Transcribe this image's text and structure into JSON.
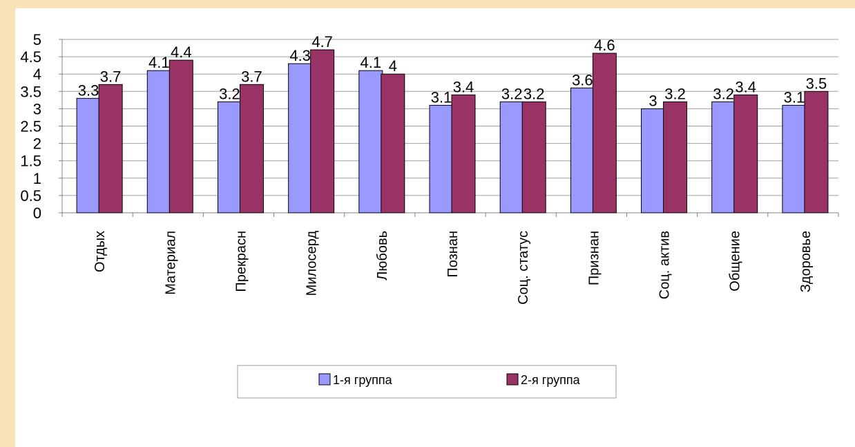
{
  "chart_data": {
    "type": "bar",
    "title": "",
    "xlabel": "",
    "ylabel": "",
    "ylim": [
      0,
      5
    ],
    "yticks": [
      "0",
      "0.5",
      "1",
      "1.5",
      "2",
      "2.5",
      "3",
      "3.5",
      "4",
      "4.5",
      "5"
    ],
    "grid": true,
    "legend_position": "bottom",
    "categories": [
      "Отдых",
      "Материал",
      "Прекрасн",
      "Милосерд",
      "Любовь",
      "Познан",
      "Соц. статус",
      "Признан",
      "Соц. актив",
      "Общение",
      "Здоровье"
    ],
    "series": [
      {
        "name": "1-я группа",
        "color": "#9999ff",
        "values": [
          3.3,
          4.1,
          3.2,
          4.3,
          4.1,
          3.1,
          3.2,
          3.6,
          3,
          3.2,
          3.1
        ],
        "labels": [
          "3.3",
          "4.1",
          "3.2",
          "4.3",
          "4.1",
          "3.1",
          "3.2",
          "3.6",
          "3",
          "3.2",
          "3.1"
        ]
      },
      {
        "name": "2-я группа",
        "color": "#993366",
        "values": [
          3.7,
          4.4,
          3.7,
          4.7,
          4,
          3.4,
          3.2,
          4.6,
          3.2,
          3.4,
          3.5
        ],
        "labels": [
          "3.7",
          "4.4",
          "3.7",
          "4.7",
          "4",
          "3.4",
          "3.2",
          "4.6",
          "3.2",
          "3.4",
          "3.5"
        ]
      }
    ]
  }
}
